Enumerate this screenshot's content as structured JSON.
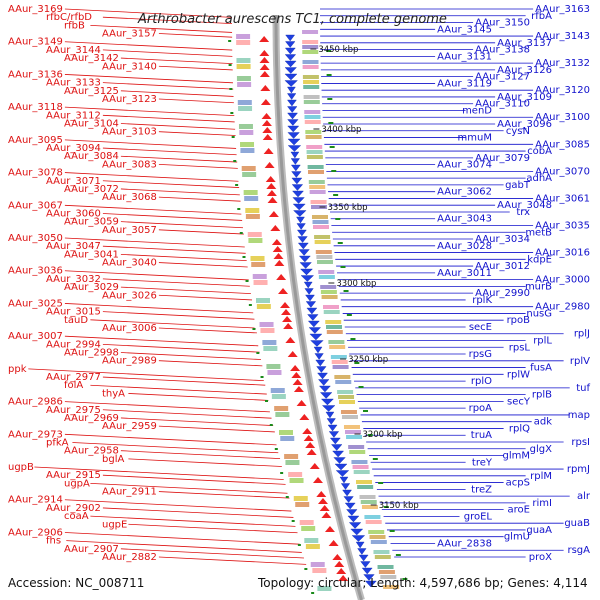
{
  "title": "Arthrobacter aurescens TC1, complete genome",
  "accession": "Accession: NC_008711",
  "summary": "Topology: circular; Length: 4,597,686 bp; Genes: 4,114",
  "colors": {
    "left": "#dd1111",
    "right": "#1111cc",
    "backbone": "#999999",
    "tick": "#1a8a1a"
  },
  "ruler": [
    "3450 kbp",
    "3400 kbp",
    "3350 kbp",
    "3300 kbp",
    "3250 kbp",
    "3200 kbp",
    "3150 kbp"
  ],
  "left_labels": [
    "AAur_3169",
    "rfbC/rfbD",
    "rfbB",
    "AAur_3157",
    "AAur_3149",
    "AAur_3144",
    "AAur_3142",
    "AAur_3140",
    "AAur_3136",
    "AAur_3133",
    "AAur_3125",
    "AAur_3123",
    "AAur_3118",
    "AAur_3112",
    "AAur_3104",
    "AAur_3103",
    "AAur_3095",
    "AAur_3094",
    "AAur_3084",
    "AAur_3083",
    "AAur_3078",
    "AAur_3071",
    "AAur_3072",
    "AAur_3068",
    "AAur_3067",
    "AAur_3060",
    "AAur_3059",
    "AAur_3057",
    "AAur_3050",
    "AAur_3047",
    "AAur_3041",
    "AAur_3040",
    "AAur_3036",
    "AAur_3032",
    "AAur_3029",
    "AAur_3026",
    "AAur_3025",
    "AAur_3015",
    "tauD",
    "AAur_3006",
    "AAur_3007",
    "AAur_2994",
    "AAur_2998",
    "AAur_2989",
    "ppk",
    "AAur_2977",
    "folA",
    "thyA",
    "AAur_2986",
    "AAur_2975",
    "AAur_2969",
    "AAur_2959",
    "AAur_2973",
    "pfkA",
    "AAur_2958",
    "bglA",
    "ugpB",
    "AAur_2915",
    "ugpA",
    "AAur_2911",
    "AAur_2914",
    "AAur_2902",
    "coaA",
    "ugpE",
    "AAur_2906",
    "fhs",
    "AAur_2907",
    "AAur_2882"
  ],
  "right_labels": [
    "AAur_3163",
    "rfbA",
    "AAur_3150",
    "AAur_3145",
    "AAur_3143",
    "AAur_3137",
    "AAur_3138",
    "AAur_3131",
    "AAur_3132",
    "AAur_3126",
    "AAur_3127",
    "AAur_3119",
    "AAur_3120",
    "AAur_3109",
    "AAur_3110",
    "menD",
    "AAur_3100",
    "AAur_3096",
    "cysN",
    "mmuM",
    "AAur_3085",
    "cobA",
    "AAur_3079",
    "AAur_3074",
    "AAur_3070",
    "adhA",
    "gabT",
    "AAur_3062",
    "AAur_3061",
    "AAur_3048",
    "trx",
    "AAur_3043",
    "AAur_3035",
    "metB",
    "AAur_3034",
    "AAur_3028",
    "AAur_3016",
    "kdpE",
    "AAur_3012",
    "AAur_3011",
    "AAur_3000",
    "murB",
    "AAur_2990",
    "rplK",
    "AAur_2980",
    "nusG",
    "rpoB",
    "secE",
    "rplJ",
    "rplL",
    "rpsL",
    "rpsG",
    "rplV",
    "fusA",
    "rplW",
    "rplO",
    "tuf",
    "rplB",
    "secY",
    "rpoA",
    "map",
    "adk",
    "rplQ",
    "truA",
    "rpsI",
    "glgX",
    "glmM",
    "treY",
    "rpmJ",
    "rplM",
    "acpS",
    "treZ",
    "alr",
    "rimI",
    "aroE",
    "groEL",
    "guaB",
    "guaA",
    "glmU",
    "AAur_2838",
    "rsgA",
    "proX"
  ]
}
